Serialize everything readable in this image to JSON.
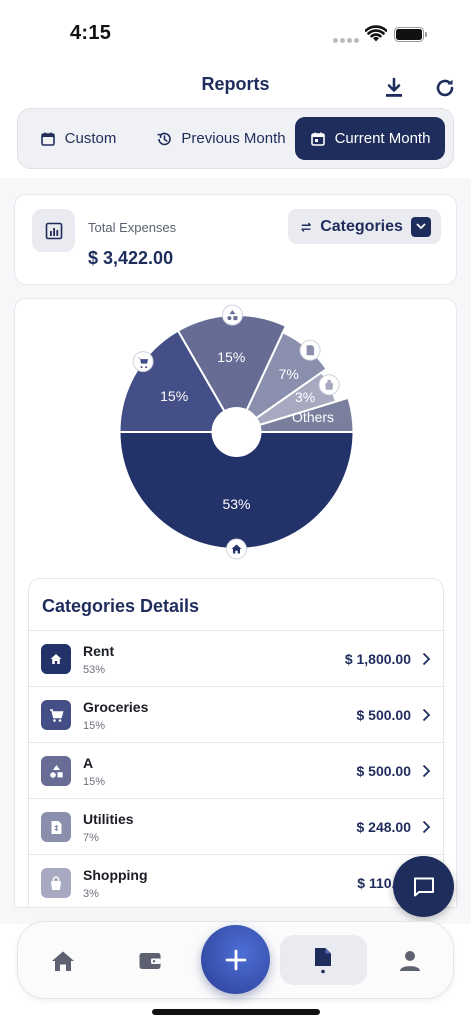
{
  "status_bar": {
    "time": "4:15"
  },
  "header": {
    "title": "Reports",
    "download_icon": "download-icon",
    "refresh_icon": "refresh-icon"
  },
  "period_tabs": [
    {
      "label": "Custom",
      "icon": "calendar-icon",
      "selected": false
    },
    {
      "label": "Previous Month",
      "icon": "history-icon",
      "selected": false
    },
    {
      "label": "Current Month",
      "icon": "calendar-icon",
      "selected": true
    }
  ],
  "summary": {
    "label": "Total Expenses",
    "value": "$ 3,422.00",
    "group_button": "Categories"
  },
  "chart_data": {
    "type": "pie",
    "slices": [
      {
        "label": "53%",
        "value": 53,
        "color": "#24326a",
        "icon": "home-icon"
      },
      {
        "label": "15%",
        "value": 15,
        "color": "#454f87",
        "icon": "cart-icon"
      },
      {
        "label": "15%",
        "value": 15,
        "color": "#666c94",
        "icon": "shapes-icon"
      },
      {
        "label": "7%",
        "value": 7,
        "color": "#8a8fae",
        "icon": "receipt-icon"
      },
      {
        "label": "3%",
        "value": 3,
        "color": "#a6a9bf",
        "icon": "bag-icon"
      },
      {
        "label": "Others",
        "value": 7,
        "color": "#7a7f9e",
        "icon": ""
      }
    ]
  },
  "details": {
    "title": "Categories Details",
    "rows": [
      {
        "name": "Rent",
        "percent": "53%",
        "amount": "$ 1,800.00",
        "icon": "home-icon",
        "color": "#24326a"
      },
      {
        "name": "Groceries",
        "percent": "15%",
        "amount": "$ 500.00",
        "icon": "cart-icon",
        "color": "#454f87"
      },
      {
        "name": "A",
        "percent": "15%",
        "amount": "$ 500.00",
        "icon": "shapes-icon",
        "color": "#666c94"
      },
      {
        "name": "Utilities",
        "percent": "7%",
        "amount": "$ 248.00",
        "icon": "receipt-icon",
        "color": "#8a8fae"
      },
      {
        "name": "Shopping",
        "percent": "3%",
        "amount": "$ 110.00",
        "icon": "bag-icon",
        "color": "#a6a9bf"
      }
    ]
  },
  "bottom_nav": {
    "items": [
      "home-icon",
      "wallet-icon",
      "add-icon",
      "reports-icon",
      "profile-icon"
    ],
    "active": "reports-icon"
  }
}
